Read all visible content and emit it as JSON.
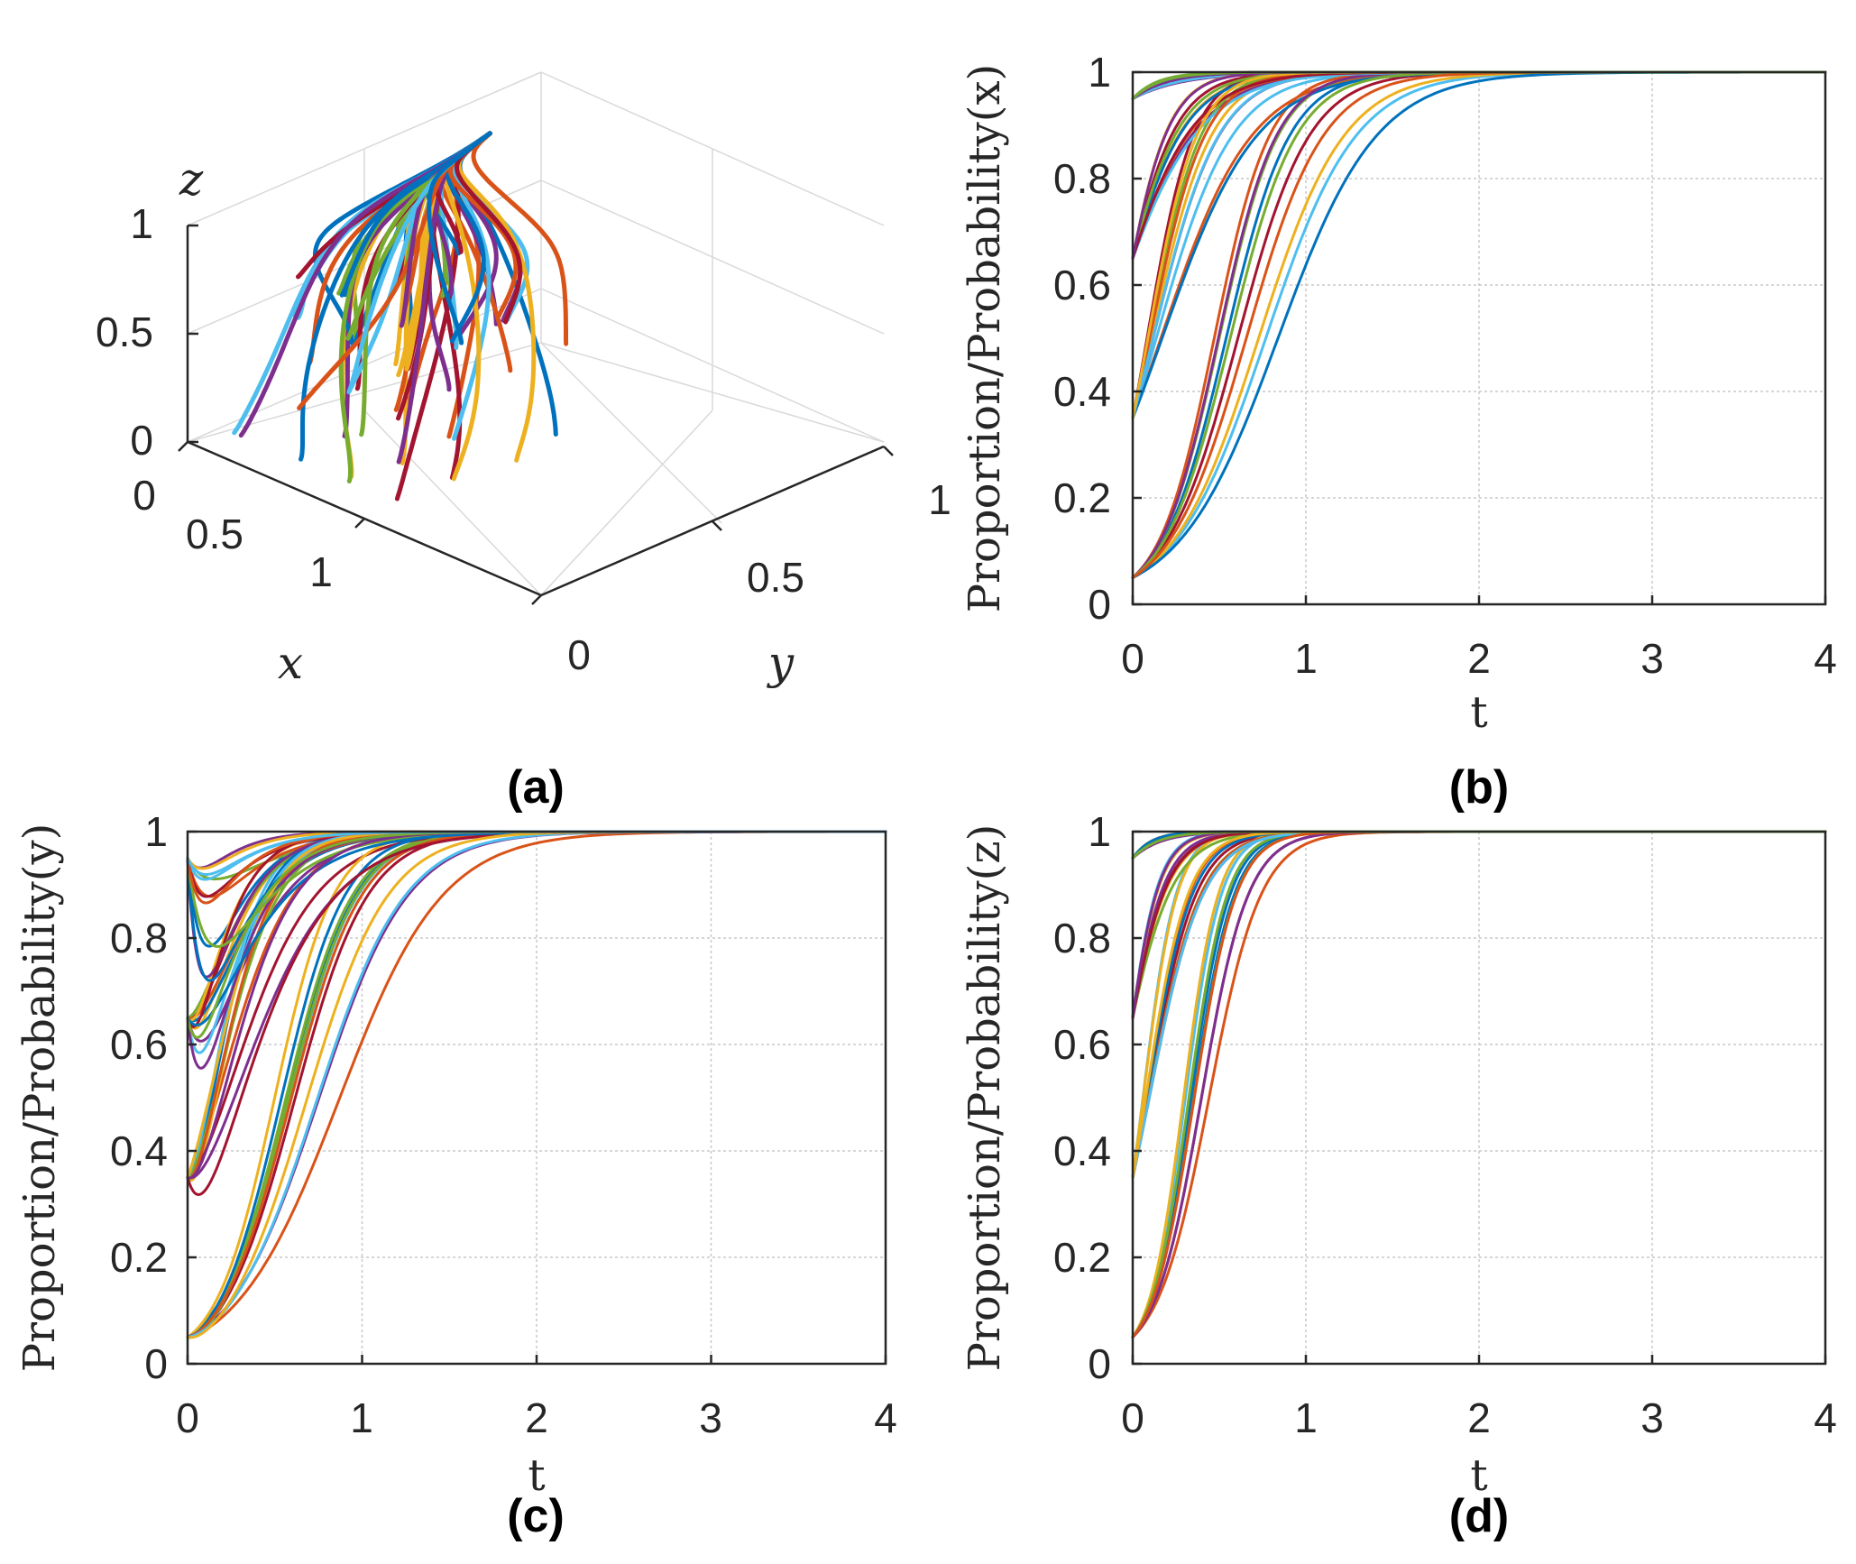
{
  "palette": [
    "#0072BD",
    "#D95319",
    "#EDB120",
    "#7E2F8E",
    "#77AC30",
    "#4DBEEE",
    "#A2142F"
  ],
  "chart_data": [
    {
      "id": "a",
      "type": "line3d",
      "panel_label": "(a)",
      "xlabel": "x",
      "ylabel": "y",
      "zlabel": "z",
      "xlim": [
        0,
        1
      ],
      "ylim": [
        0,
        1
      ],
      "zlim": [
        0,
        1
      ],
      "xticks": [
        "0",
        "0.5",
        "1"
      ],
      "yticks": [
        "0",
        "0.5",
        "1"
      ],
      "zticks": [
        "0",
        "0.5",
        "1"
      ],
      "converges_to": [
        1,
        1,
        1
      ],
      "initial_values": [
        0.05,
        0.35,
        0.65,
        0.95
      ],
      "series_count": 64
    },
    {
      "id": "b",
      "type": "line",
      "panel_label": "(b)",
      "xlabel": "t",
      "ylabel": "Proportion/Probability(x)",
      "xlim": [
        0,
        4
      ],
      "ylim": [
        0,
        1
      ],
      "xticks": [
        "0",
        "1",
        "2",
        "3",
        "4"
      ],
      "yticks": [
        "0",
        "0.2",
        "0.4",
        "0.6",
        "0.8",
        "1"
      ],
      "initial_values": [
        0.05,
        0.35,
        0.65,
        0.95
      ],
      "rate_range": [
        6,
        14
      ],
      "dip": false,
      "series_count": 40
    },
    {
      "id": "c",
      "type": "line",
      "panel_label": "(c)",
      "xlabel": "t",
      "ylabel": "Proportion/Probability(y)",
      "xlim": [
        0,
        4
      ],
      "ylim": [
        0,
        1
      ],
      "xticks": [
        "0",
        "1",
        "2",
        "3",
        "4"
      ],
      "yticks": [
        "0",
        "0.2",
        "0.4",
        "0.6",
        "0.8",
        "1"
      ],
      "initial_values": [
        0.05,
        0.35,
        0.65,
        0.95
      ],
      "rate_range": [
        6,
        12
      ],
      "dip": true,
      "series_count": 48
    },
    {
      "id": "d",
      "type": "line",
      "panel_label": "(d)",
      "xlabel": "t",
      "ylabel": "Proportion/Probability(z)",
      "xlim": [
        0,
        4
      ],
      "ylim": [
        0,
        1
      ],
      "xticks": [
        "0",
        "1",
        "2",
        "3",
        "4"
      ],
      "yticks": [
        "0",
        "0.2",
        "0.4",
        "0.6",
        "0.8",
        "1"
      ],
      "initial_values": [
        0.05,
        0.35,
        0.65,
        0.95
      ],
      "rate_range": [
        11,
        20
      ],
      "dip": false,
      "series_count": 40
    }
  ]
}
